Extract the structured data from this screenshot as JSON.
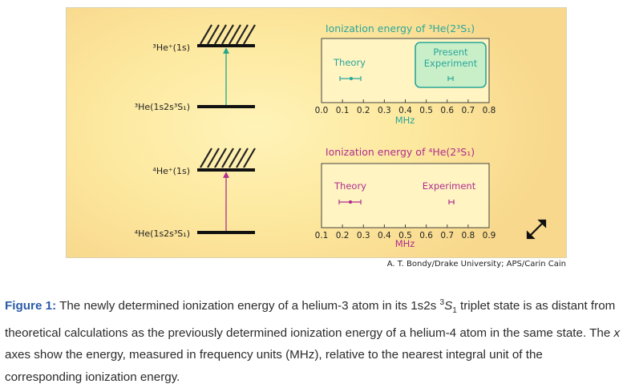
{
  "panels": [
    {
      "title": "Ionization energy of ³He(2³S₁)",
      "upper_level": "³He⁺(1s)",
      "lower_level": "³He(1s2s³S₁)",
      "ticks": [
        "0.0",
        "0.1",
        "0.2",
        "0.3",
        "0.4",
        "0.5",
        "0.6",
        "0.7",
        "0.8"
      ],
      "axis_label": "MHz",
      "theory_label": "Theory",
      "experiment_label": "Present\nExperiment",
      "color": "#2aa69b",
      "arrow_color": "#20a58c"
    },
    {
      "title": "Ionization energy of ⁴He(2³S₁)",
      "upper_level": "⁴He⁺(1s)",
      "lower_level": "⁴He(1s2s³S₁)",
      "ticks": [
        "0.1",
        "0.2",
        "0.3",
        "0.4",
        "0.5",
        "0.6",
        "0.7",
        "0.8",
        "0.9"
      ],
      "axis_label": "MHz",
      "theory_label": "Theory",
      "experiment_label": "Experiment",
      "color": "#b02c8e",
      "arrow_color": "#b02c8e"
    }
  ],
  "credit": "A. T. Bondy/Drake University; APS/Carin Cain",
  "caption": {
    "head": "Figure 1:",
    "part1": " The newly determined ionization energy of a helium-3 atom in its ",
    "state_prefix": "1s2s ",
    "state_sup": "3",
    "state_letter": "S",
    "state_sub": "1",
    "part2": " triplet state is as distant from theoretical calculations as the previously determined ionization energy of a helium-4 atom in the same state. The ",
    "axis_word": "x",
    "part3": " axes show the energy, measured in frequency units (MHz), relative to the nearest integral unit of the corresponding ionization energy."
  },
  "icons": {
    "expand": "expand-arrows-icon"
  }
}
